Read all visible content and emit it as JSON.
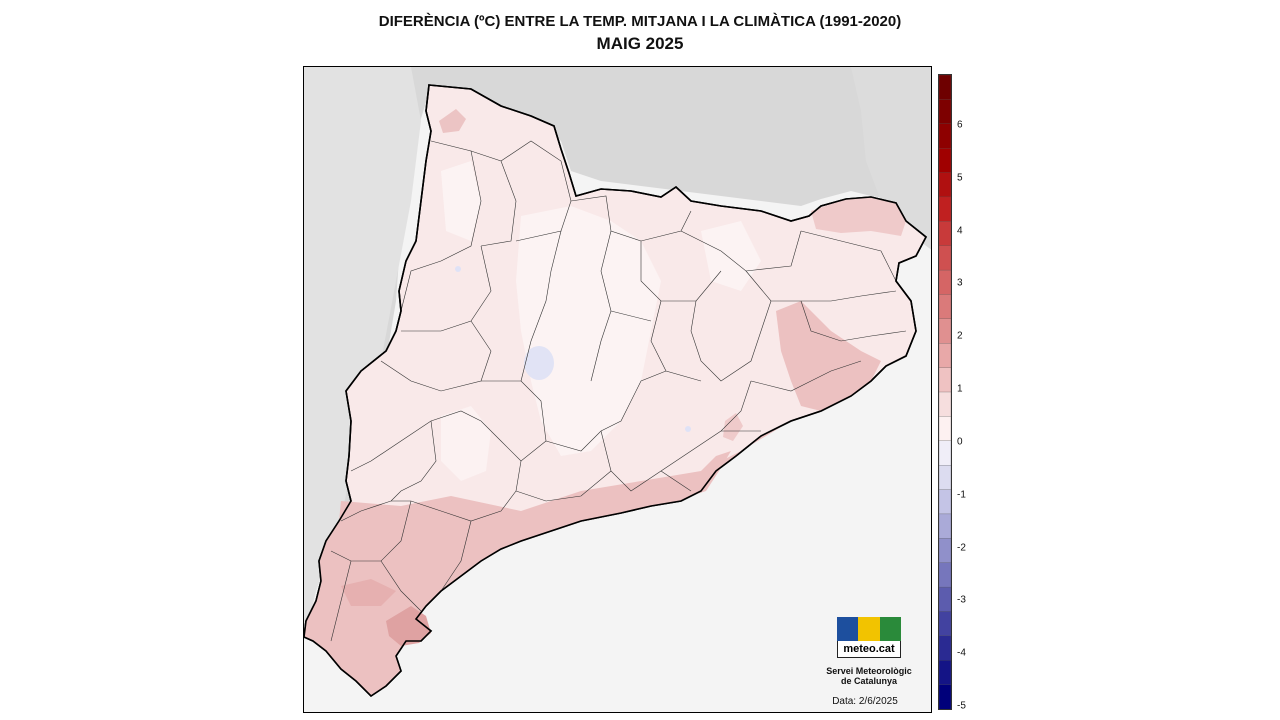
{
  "title": {
    "line1": "DIFERÈNCIA (ºC) ENTRE LA TEMP. MITJANA I LA CLIMÀTICA (1991-2020)",
    "line2": "MAIG 2025"
  },
  "legend": {
    "labels": [
      "6",
      "5",
      "4",
      "3",
      "2",
      "1",
      "0",
      "-1",
      "-2",
      "-3",
      "-4",
      "-5"
    ],
    "colors": [
      "#6e0000",
      "#7d0000",
      "#8e0000",
      "#a00000",
      "#b01010",
      "#c02020",
      "#c83a3a",
      "#cf5050",
      "#d56565",
      "#da7a7a",
      "#e09090",
      "#e8a8a8",
      "#efc2c2",
      "#f6dede",
      "#fdf1f1",
      "#f0eef8",
      "#dcdcf0",
      "#c4c4e6",
      "#aaaad8",
      "#9090ca",
      "#7676bc",
      "#5c5cae",
      "#4242a0",
      "#2a2a92",
      "#141486",
      "#00007a"
    ],
    "range": [
      -5,
      7
    ]
  },
  "map": {
    "fill_base": "#f9e9e9",
    "fill_warm": "#ecc1c1",
    "fill_warmer": "#de9e9e",
    "fill_cool": "#e4e6f6",
    "relief": "#d9d9d9",
    "sea": "#f4f4f4"
  },
  "logo": {
    "word": "meteo.cat",
    "colors": [
      "#1d4f9e",
      "#f2c300",
      "#2a8a3a"
    ],
    "icons": [
      "waves-icon",
      "sun-icon",
      "cloud-icon"
    ]
  },
  "organization": {
    "line1": "Servei Meteorològic",
    "line2": "de Catalunya"
  },
  "date": "Data: 2/6/2025"
}
